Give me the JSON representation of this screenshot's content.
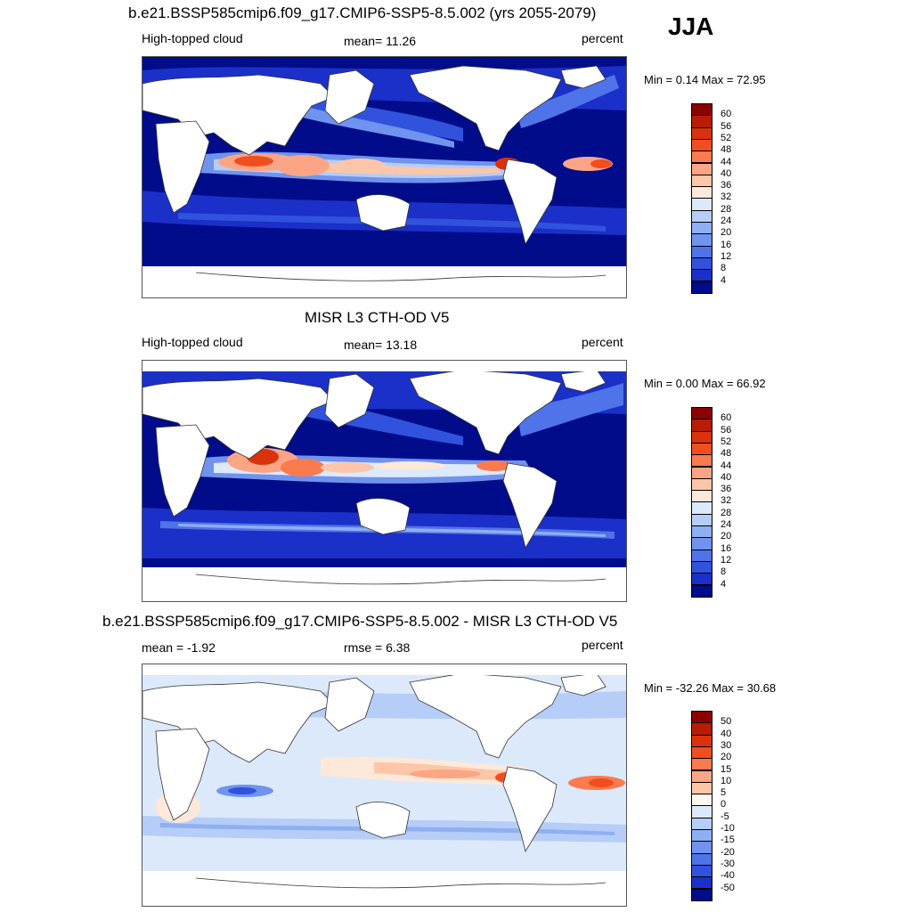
{
  "season": "JJA",
  "panels": [
    {
      "title": "b.e21.BSSP585cmip6.f09_g17.CMIP6-SSP5-8.5.002 (yrs 2055-2079)",
      "left_label": "High-topped cloud",
      "center_label": "mean=  11.26",
      "right_label": "percent",
      "minmax": "Min =   0.14 Max =  72.95",
      "colorbar_labels": [
        "60",
        "56",
        "52",
        "48",
        "44",
        "40",
        "36",
        "32",
        "28",
        "24",
        "20",
        "16",
        "12",
        "8",
        "4"
      ],
      "colorbar_colors": [
        "#8b0000",
        "#b81c05",
        "#d8330c",
        "#f04e20",
        "#fb7a4e",
        "#fca585",
        "#fdc6a8",
        "#fde8d9",
        "#dbe9fb",
        "#b5cdf7",
        "#8eaff2",
        "#6f93ee",
        "#4f73e8",
        "#3052dd",
        "#1a30c8",
        "#000c8a"
      ]
    },
    {
      "title": "MISR L3 CTH-OD V5",
      "left_label": "High-topped cloud",
      "center_label": "mean=  13.18",
      "right_label": "percent",
      "minmax": "Min =   0.00 Max =  66.92",
      "colorbar_labels": [
        "60",
        "56",
        "52",
        "48",
        "44",
        "40",
        "36",
        "32",
        "28",
        "24",
        "20",
        "16",
        "12",
        "8",
        "4"
      ],
      "colorbar_colors": [
        "#8b0000",
        "#b81c05",
        "#d8330c",
        "#f04e20",
        "#fb7a4e",
        "#fca585",
        "#fdc6a8",
        "#fde8d9",
        "#dbe9fb",
        "#b5cdf7",
        "#8eaff2",
        "#6f93ee",
        "#4f73e8",
        "#3052dd",
        "#1a30c8",
        "#000c8a"
      ]
    },
    {
      "title": "b.e21.BSSP585cmip6.f09_g17.CMIP6-SSP5-8.5.002 - MISR L3 CTH-OD V5",
      "left_label": "mean =  -1.92",
      "center_label": "rmse =   6.38",
      "right_label": "percent",
      "minmax": "Min = -32.26 Max =  30.68",
      "colorbar_labels": [
        "50",
        "40",
        "30",
        "20",
        "15",
        "10",
        "5",
        "0",
        "-5",
        "-10",
        "-15",
        "-20",
        "-30",
        "-40",
        "-50"
      ],
      "colorbar_colors": [
        "#8b0000",
        "#b81c05",
        "#d8330c",
        "#f04e20",
        "#fb7a4e",
        "#fca585",
        "#fdc6a8",
        "#fff5ef",
        "#dbe9fb",
        "#b5cdf7",
        "#8eaff2",
        "#6f93ee",
        "#4f73e8",
        "#3052dd",
        "#1a30c8",
        "#000c8a"
      ]
    }
  ]
}
